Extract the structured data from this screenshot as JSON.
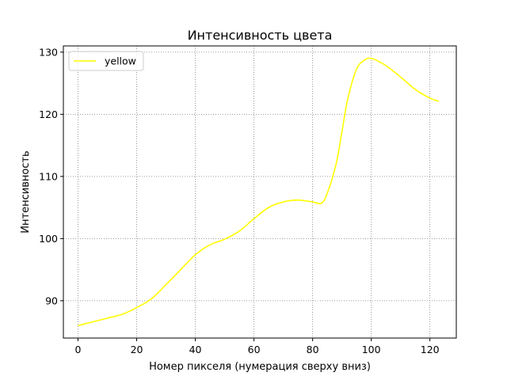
{
  "chart_data": {
    "type": "line",
    "title": "Интенсивность цвета",
    "xlabel": "Номер пикселя (нумерация сверху вниз)",
    "ylabel": "Интенсивность",
    "xlim": [
      -5,
      129
    ],
    "ylim": [
      84,
      131
    ],
    "xticks": [
      0,
      20,
      40,
      60,
      80,
      100,
      120
    ],
    "yticks": [
      90,
      100,
      110,
      120,
      130
    ],
    "grid": true,
    "legend_position": "top-left",
    "series": [
      {
        "name": "yellow",
        "color": "#ffff00",
        "x": [
          0,
          5,
          10,
          15,
          20,
          25,
          30,
          35,
          40,
          45,
          50,
          55,
          60,
          65,
          70,
          75,
          80,
          83,
          85,
          88,
          90,
          92,
          95,
          98,
          100,
          103,
          106,
          110,
          115,
          120,
          123
        ],
        "y": [
          86.0,
          86.6,
          87.2,
          87.8,
          88.9,
          90.3,
          92.6,
          95.0,
          97.4,
          99.0,
          99.9,
          101.2,
          103.2,
          105.0,
          105.9,
          106.2,
          105.9,
          105.7,
          107.3,
          112.0,
          117.2,
          122.5,
          127.3,
          128.8,
          129.0,
          128.4,
          127.5,
          126.0,
          124.0,
          122.6,
          122.1
        ]
      }
    ]
  }
}
